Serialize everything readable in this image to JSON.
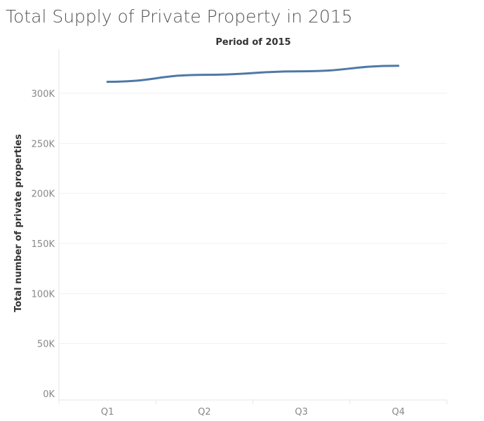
{
  "chart_data": {
    "type": "line",
    "title": "Total Supply of Private Property in 2015",
    "column_header": "Period of 2015",
    "ylabel": "Total number of private properties",
    "categories": [
      "Q1",
      "Q2",
      "Q3",
      "Q4"
    ],
    "values": [
      311500,
      318500,
      322000,
      327500
    ],
    "ylim": [
      0,
      340000
    ],
    "yticks": [
      {
        "value": 0,
        "label": "0K"
      },
      {
        "value": 50000,
        "label": "50K"
      },
      {
        "value": 100000,
        "label": "100K"
      },
      {
        "value": 150000,
        "label": "150K"
      },
      {
        "value": 200000,
        "label": "200K"
      },
      {
        "value": 250000,
        "label": "250K"
      },
      {
        "value": 300000,
        "label": "300K"
      }
    ],
    "grid": true,
    "line_color": "#4E79A7",
    "grid_color": "#F0F0F0",
    "axis_color": "#E6E6E6"
  }
}
